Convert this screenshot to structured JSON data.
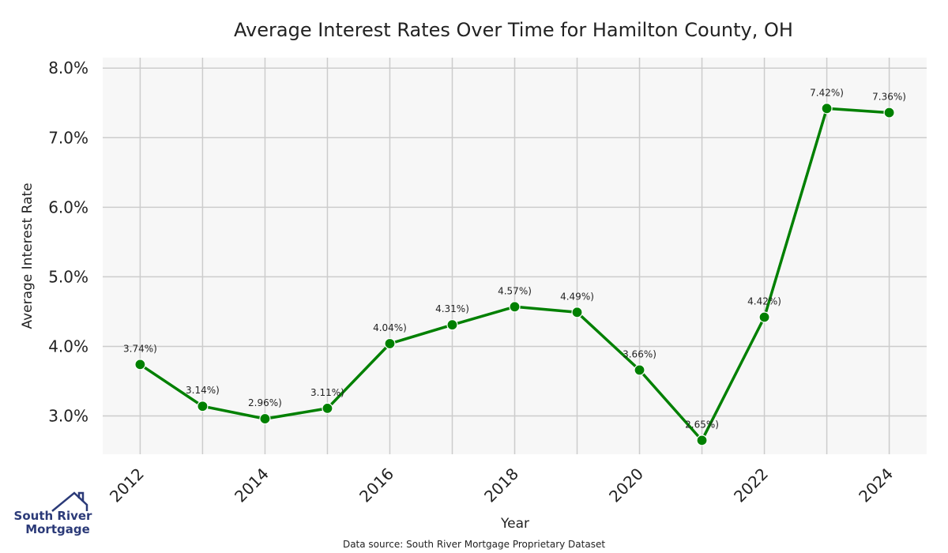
{
  "chart_data": {
    "type": "line",
    "title": "Average Interest Rates Over Time for Hamilton County, OH",
    "xlabel": "Year",
    "ylabel": "Average Interest Rate",
    "x": [
      2012,
      2013,
      2014,
      2015,
      2016,
      2017,
      2018,
      2019,
      2020,
      2021,
      2022,
      2023,
      2024
    ],
    "series": [
      {
        "values": [
          3.74,
          3.14,
          2.96,
          3.11,
          4.04,
          4.31,
          4.57,
          4.49,
          3.66,
          2.65,
          4.42,
          7.42,
          7.36
        ],
        "labels": [
          "3.74%)",
          "3.14%)",
          "2.96%)",
          "3.11%)",
          "4.04%)",
          "4.31%)",
          "4.57%)",
          "4.49%)",
          "3.66%)",
          "2.65%)",
          "4.42%)",
          "7.42%)",
          "7.36%)"
        ],
        "color": "#008000"
      }
    ],
    "xticks": [
      2012,
      2014,
      2016,
      2018,
      2020,
      2022,
      2024
    ],
    "xtick_labels": [
      "2012",
      "2014",
      "2016",
      "2018",
      "2020",
      "2022",
      "2024"
    ],
    "yticks": [
      3.0,
      4.0,
      5.0,
      6.0,
      7.0,
      8.0
    ],
    "ytick_labels": [
      "3.0%",
      "4.0%",
      "5.0%",
      "6.0%",
      "7.0%",
      "8.0%"
    ],
    "xlim": [
      2011.4,
      2024.6
    ],
    "ylim": [
      2.45,
      8.15
    ],
    "grid": true,
    "background": "#f7f7f7",
    "gridline_color": "#cccccc"
  },
  "footer": {
    "source": "Data source: South River Mortgage Proprietary Dataset"
  },
  "logo": {
    "line1": "South River",
    "line2": "Mortgage",
    "color": "#2b3a78"
  }
}
